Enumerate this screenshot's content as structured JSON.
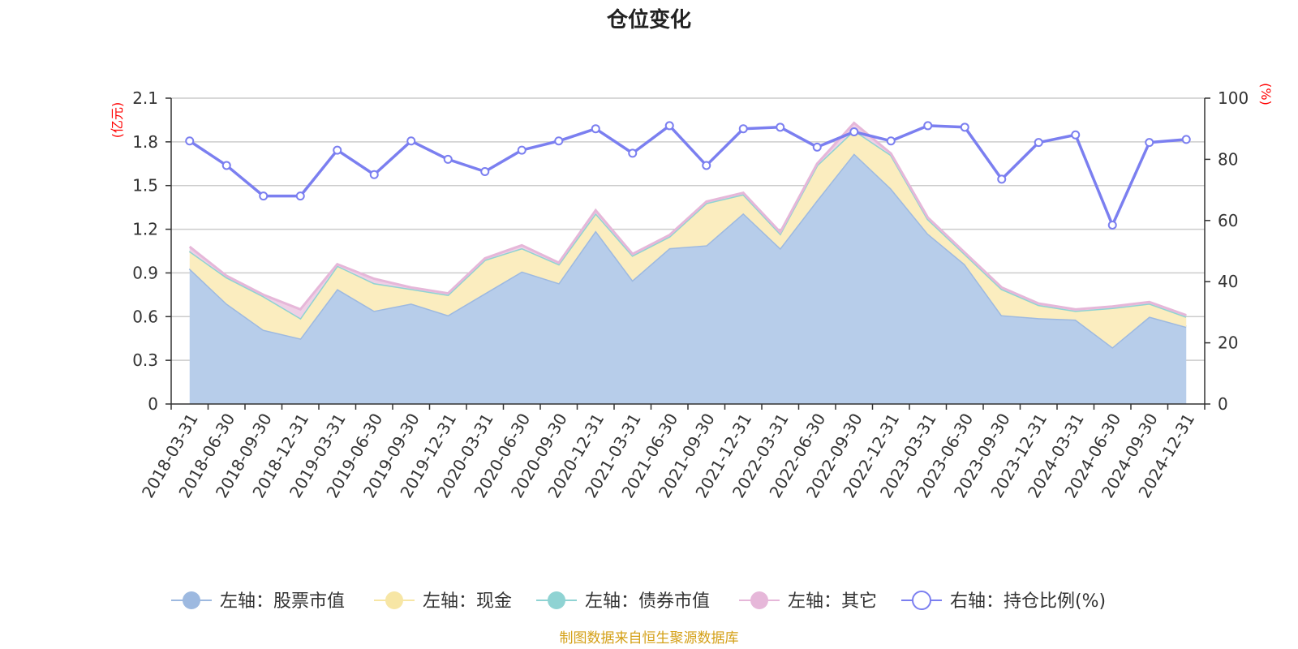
{
  "chart_data": {
    "type": "area",
    "title": "仓位变化",
    "source_note": "制图数据来自恒生聚源数据库",
    "left_axis": {
      "unit": "(亿元)",
      "min": 0,
      "max": 2.1,
      "ticks": [
        "0",
        "0.3",
        "0.6",
        "0.9",
        "1.2",
        "1.5",
        "1.8",
        "2.1"
      ]
    },
    "right_axis": {
      "unit": "(%)",
      "min": 0,
      "max": 100,
      "ticks": [
        "0",
        "20",
        "40",
        "60",
        "80",
        "100"
      ]
    },
    "categories": [
      "2018-03-31",
      "2018-06-30",
      "2018-09-30",
      "2018-12-31",
      "2019-03-31",
      "2019-06-30",
      "2019-09-30",
      "2019-12-31",
      "2020-03-31",
      "2020-06-30",
      "2020-09-30",
      "2020-12-31",
      "2021-03-31",
      "2021-06-30",
      "2021-09-30",
      "2021-12-31",
      "2022-03-31",
      "2022-06-30",
      "2022-09-30",
      "2022-12-31",
      "2023-03-31",
      "2023-06-30",
      "2023-09-30",
      "2023-12-31",
      "2024-03-31",
      "2024-06-30",
      "2024-09-30",
      "2024-12-31"
    ],
    "series": [
      {
        "name": "左轴：股票市值",
        "axis": "left",
        "kind": "stacked-area",
        "color": "#9db9e0",
        "fill": "#b7cdea",
        "values": [
          0.93,
          0.69,
          0.51,
          0.45,
          0.79,
          0.64,
          0.69,
          0.61,
          0.76,
          0.91,
          0.83,
          1.19,
          0.85,
          1.07,
          1.09,
          1.31,
          1.07,
          1.4,
          1.72,
          1.48,
          1.17,
          0.96,
          0.61,
          0.59,
          0.58,
          0.39,
          0.6,
          0.53
        ]
      },
      {
        "name": "左轴：现金",
        "axis": "left",
        "kind": "stacked-area",
        "color": "#f7e6a5",
        "fill": "#fbedbf",
        "values": [
          0.12,
          0.18,
          0.23,
          0.14,
          0.16,
          0.19,
          0.1,
          0.14,
          0.23,
          0.16,
          0.13,
          0.12,
          0.17,
          0.08,
          0.29,
          0.13,
          0.1,
          0.24,
          0.16,
          0.23,
          0.1,
          0.07,
          0.18,
          0.09,
          0.06,
          0.27,
          0.09,
          0.07
        ]
      },
      {
        "name": "左轴：债券市值",
        "axis": "left",
        "kind": "stacked-area",
        "color": "#8fd3d3",
        "fill": "#b3e1e1",
        "values": [
          0,
          0,
          0,
          0,
          0,
          0,
          0,
          0,
          0,
          0,
          0,
          0,
          0,
          0,
          0,
          0,
          0,
          0,
          0,
          0,
          0,
          0,
          0,
          0,
          0,
          0,
          0,
          0
        ]
      },
      {
        "name": "左轴：其它",
        "axis": "left",
        "kind": "stacked-area",
        "color": "#e6b7d9",
        "fill": "#efd0e6",
        "values": [
          0.03,
          0.01,
          0.01,
          0.06,
          0.01,
          0.03,
          0.01,
          0.01,
          0.01,
          0.02,
          0.01,
          0.02,
          0.01,
          0.01,
          0.01,
          0.01,
          0.01,
          0.01,
          0.05,
          0.01,
          0.01,
          0.01,
          0.01,
          0.01,
          0.01,
          0.01,
          0.01,
          0.01
        ]
      },
      {
        "name": "右轴：持仓比例(%)",
        "axis": "right",
        "kind": "line",
        "color": "#7b7ff0",
        "values": [
          86,
          78,
          68,
          68,
          83,
          75,
          86,
          80,
          76,
          83,
          86,
          90,
          82,
          91,
          78,
          90,
          90.5,
          84,
          89,
          86,
          91,
          90.5,
          73.5,
          85.5,
          88,
          58.5,
          85.5,
          86.5
        ]
      }
    ],
    "legend_position": "bottom",
    "grid": true
  }
}
